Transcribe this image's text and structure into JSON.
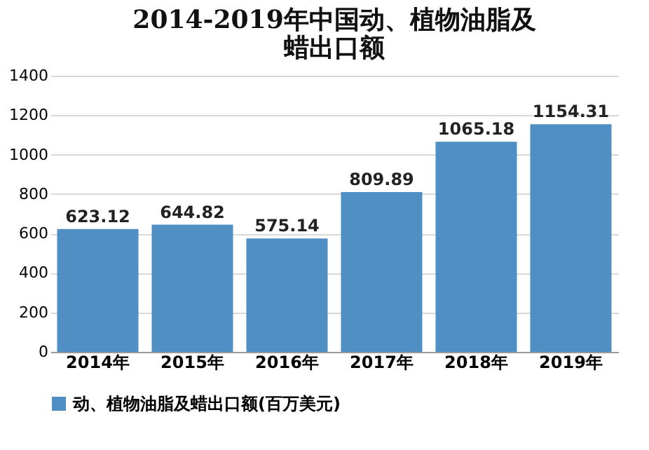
{
  "chart_data": {
    "type": "bar",
    "title": "2014-2019年中国动、植物油脂及蜡出口额",
    "categories": [
      "2014年",
      "2015年",
      "2016年",
      "2017年",
      "2018年",
      "2019年"
    ],
    "series": [
      {
        "name": "动、植物油脂及蜡出口额(百万美元)",
        "color": "#4f8fc4",
        "values": [
          623.12,
          644.82,
          575.14,
          809.89,
          1065.18,
          1154.31
        ]
      }
    ],
    "ylim": [
      0,
      1400
    ],
    "yticks": [
      0,
      200,
      400,
      600,
      800,
      1000,
      1200,
      1400
    ],
    "grid": "y",
    "legend": "bottom",
    "data_labels": true
  }
}
